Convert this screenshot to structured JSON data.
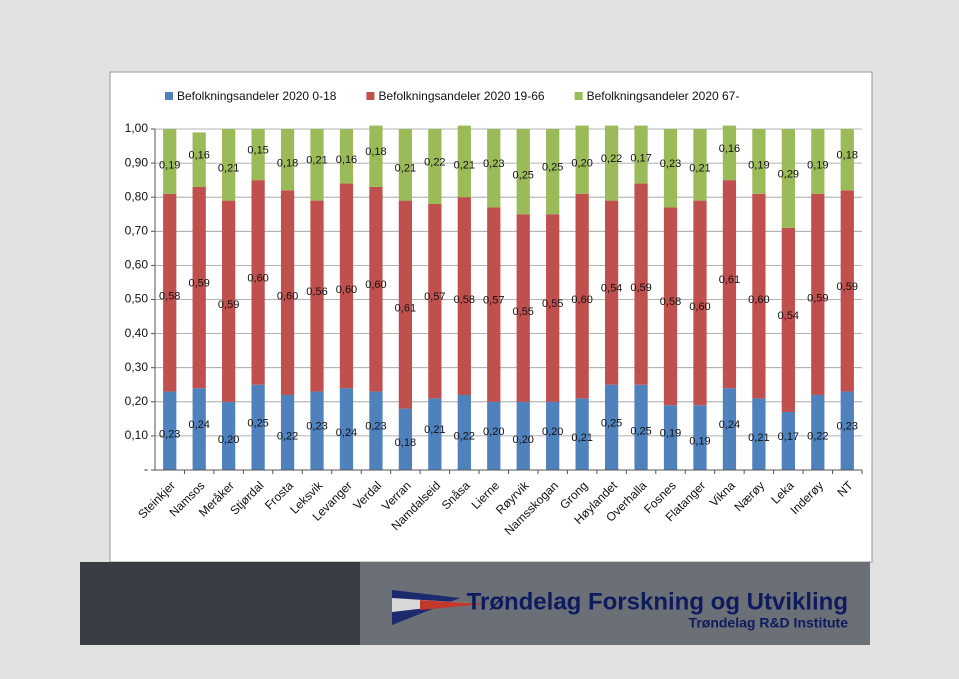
{
  "chart_data": {
    "type": "stacked_bar",
    "categories": [
      "Steinkjer",
      "Namsos",
      "Meråker",
      "Stjørdal",
      "Frosta",
      "Leksvik",
      "Levanger",
      "Verdal",
      "Verran",
      "Namdalseid",
      "Snåsa",
      "Lierne",
      "Røyrvik",
      "Namsskogan",
      "Grong",
      "Høylandet",
      "Overhalla",
      "Fosnes",
      "Flatanger",
      "Vikna",
      "Nærøy",
      "Leka",
      "Inderøy",
      "NT"
    ],
    "series": [
      {
        "name": "Befolkningsandeler 2020 0-18",
        "color": "#4f81bd",
        "values": [
          0.23,
          0.24,
          0.2,
          0.25,
          0.22,
          0.23,
          0.24,
          0.23,
          0.18,
          0.21,
          0.22,
          0.2,
          0.2,
          0.2,
          0.21,
          0.25,
          0.25,
          0.19,
          0.19,
          0.24,
          0.21,
          0.17,
          0.22,
          0.23
        ],
        "value_labels": [
          "0,23",
          "0,24",
          "0,20",
          "0,25",
          "0,22",
          "0,23",
          "0,24",
          "0,23",
          "0,18",
          "0,21",
          "0,22",
          "0,20",
          "0,20",
          "0,20",
          "0,21",
          "0,25",
          "0,25",
          "0,19",
          "0,19",
          "0,24",
          "0,21",
          "0,17",
          "0,22",
          "0,23"
        ]
      },
      {
        "name": "Befolkningsandeler 2020 19-66",
        "color": "#c0504d",
        "values": [
          0.58,
          0.59,
          0.59,
          0.6,
          0.6,
          0.56,
          0.6,
          0.6,
          0.61,
          0.57,
          0.58,
          0.57,
          0.55,
          0.55,
          0.6,
          0.54,
          0.59,
          0.58,
          0.6,
          0.61,
          0.6,
          0.54,
          0.59,
          0.59
        ],
        "value_labels": [
          "0,58",
          "0,59",
          "0,59",
          "0,60",
          "0,60",
          "0,56",
          "0,60",
          "0,60",
          "0,61",
          "0,57",
          "0,58",
          "0,57",
          "0,55",
          "0,55",
          "0,60",
          "0,54",
          "0,59",
          "0,58",
          "0,60",
          "0,61",
          "0,60",
          "0,54",
          "0,59",
          "0,59"
        ]
      },
      {
        "name": "Befolkningsandeler 2020 67-",
        "color": "#9bbb59",
        "values": [
          0.19,
          0.16,
          0.21,
          0.15,
          0.18,
          0.21,
          0.16,
          0.18,
          0.21,
          0.22,
          0.21,
          0.23,
          0.25,
          0.25,
          0.2,
          0.22,
          0.17,
          0.23,
          0.21,
          0.16,
          0.19,
          0.29,
          0.19,
          0.18
        ],
        "value_labels": [
          "0,19",
          "0,16",
          "0,21",
          "0,15",
          "0,18",
          "0,21",
          "0,16",
          "0,18",
          "0,21",
          "0,22",
          "0,21",
          "0,23",
          "0,25",
          "0,25",
          "0,20",
          "0,22",
          "0,17",
          "0,23",
          "0,21",
          "0,16",
          "0,19",
          "0,29",
          "0,19",
          "0,18"
        ]
      }
    ],
    "ylim": [
      0,
      1
    ],
    "yticks": [
      {
        "value": 0,
        "label": "-"
      },
      {
        "value": 0.1,
        "label": "0,10"
      },
      {
        "value": 0.2,
        "label": "0,20"
      },
      {
        "value": 0.3,
        "label": "0,30"
      },
      {
        "value": 0.4,
        "label": "0,40"
      },
      {
        "value": 0.5,
        "label": "0,50"
      },
      {
        "value": 0.6,
        "label": "0,60"
      },
      {
        "value": 0.7,
        "label": "0,70"
      },
      {
        "value": 0.8,
        "label": "0,80"
      },
      {
        "value": 0.9,
        "label": "0,90"
      },
      {
        "value": 1,
        "label": "1,00"
      }
    ],
    "grid": true,
    "legend": "top"
  },
  "footer": {
    "title": "Trøndelag Forskning og Utvikling",
    "subtitle": "Trøndelag R&D Institute"
  }
}
